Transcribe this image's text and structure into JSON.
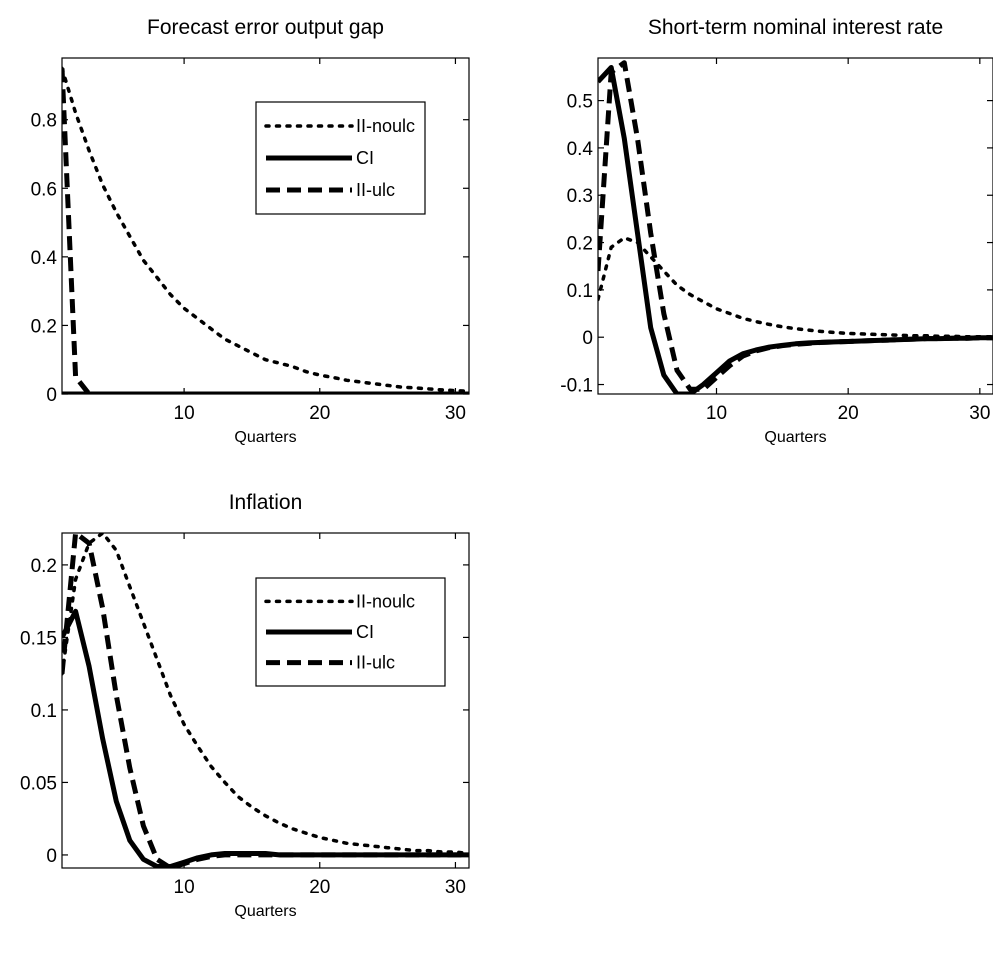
{
  "chart_data": [
    {
      "type": "line",
      "title": "Forecast error output gap",
      "xlabel": "Quarters",
      "ylabel": "",
      "xlim": [
        1,
        31
      ],
      "ylim": [
        0,
        0.98
      ],
      "xticks": [
        10,
        20,
        30
      ],
      "yticks": [
        0,
        0.2,
        0.4,
        0.6,
        0.8
      ],
      "x_tick_labels": [
        "10",
        "20",
        "30"
      ],
      "y_tick_labels": [
        "0",
        "0.2",
        "0.4",
        "0.6",
        "0.8"
      ],
      "grid": false,
      "legend": {
        "placement": "top-right",
        "entries": [
          "II-noulc",
          "CI",
          "II-ulc"
        ]
      },
      "x": [
        1,
        2,
        3,
        4,
        5,
        6,
        7,
        8,
        9,
        10,
        11,
        12,
        13,
        14,
        15,
        16,
        17,
        18,
        19,
        20,
        21,
        22,
        23,
        24,
        25,
        26,
        27,
        28,
        29,
        30,
        31
      ],
      "series": [
        {
          "name": "II-noulc",
          "style": "dotted",
          "values": [
            0.95,
            0.82,
            0.71,
            0.61,
            0.53,
            0.46,
            0.39,
            0.34,
            0.29,
            0.25,
            0.22,
            0.19,
            0.16,
            0.14,
            0.12,
            0.1,
            0.09,
            0.08,
            0.065,
            0.055,
            0.048,
            0.04,
            0.035,
            0.03,
            0.025,
            0.02,
            0.018,
            0.015,
            0.012,
            0.01,
            0.008
          ]
        },
        {
          "name": "CI",
          "style": "solid",
          "values": [
            0,
            0,
            0,
            0,
            0,
            0,
            0,
            0,
            0,
            0,
            0,
            0,
            0,
            0,
            0,
            0,
            0,
            0,
            0,
            0,
            0,
            0,
            0,
            0,
            0,
            0,
            0,
            0,
            0,
            0,
            0
          ]
        },
        {
          "name": "II-ulc",
          "style": "dashed",
          "values": [
            0.95,
            0.05,
            0,
            0,
            0,
            0,
            0,
            0,
            0,
            0,
            0,
            0,
            0,
            0,
            0,
            0,
            0,
            0,
            0,
            0,
            0,
            0,
            0,
            0,
            0,
            0,
            0,
            0,
            0,
            0,
            0
          ]
        }
      ]
    },
    {
      "type": "line",
      "title": "Short-term nominal interest rate",
      "xlabel": "Quarters",
      "ylabel": "",
      "xlim": [
        1,
        31
      ],
      "ylim": [
        -0.12,
        0.59
      ],
      "xticks": [
        10,
        20,
        30
      ],
      "yticks": [
        -0.1,
        0,
        0.1,
        0.2,
        0.3,
        0.4,
        0.5
      ],
      "x_tick_labels": [
        "10",
        "20",
        "30"
      ],
      "y_tick_labels": [
        "-0.1",
        "0",
        "0.1",
        "0.2",
        "0.3",
        "0.4",
        "0.5"
      ],
      "grid": false,
      "legend": null,
      "x": [
        1,
        2,
        3,
        4,
        5,
        6,
        7,
        8,
        9,
        10,
        11,
        12,
        13,
        14,
        15,
        16,
        17,
        18,
        19,
        20,
        21,
        22,
        23,
        24,
        25,
        26,
        27,
        28,
        29,
        30,
        31
      ],
      "series": [
        {
          "name": "II-noulc",
          "style": "dotted",
          "values": [
            0.08,
            0.19,
            0.21,
            0.2,
            0.17,
            0.14,
            0.11,
            0.09,
            0.075,
            0.06,
            0.05,
            0.04,
            0.033,
            0.027,
            0.022,
            0.018,
            0.015,
            0.012,
            0.01,
            0.008,
            0.007,
            0.006,
            0.005,
            0.004,
            0.003,
            0.003,
            0.002,
            0.002,
            0.001,
            0.001,
            0.001
          ]
        },
        {
          "name": "CI",
          "style": "solid",
          "values": [
            0.54,
            0.57,
            0.42,
            0.22,
            0.02,
            -0.08,
            -0.12,
            -0.12,
            -0.1,
            -0.075,
            -0.05,
            -0.035,
            -0.027,
            -0.021,
            -0.017,
            -0.014,
            -0.012,
            -0.011,
            -0.01,
            -0.009,
            -0.008,
            -0.007,
            -0.006,
            -0.005,
            -0.004,
            -0.003,
            -0.003,
            -0.002,
            -0.002,
            -0.001,
            -0.001
          ]
        },
        {
          "name": "II-ulc",
          "style": "dashed",
          "values": [
            0.14,
            0.56,
            0.58,
            0.42,
            0.22,
            0.05,
            -0.07,
            -0.11,
            -0.11,
            -0.085,
            -0.06,
            -0.04,
            -0.029,
            -0.022,
            -0.018,
            -0.015,
            -0.013,
            -0.011,
            -0.01,
            -0.009,
            -0.008,
            -0.007,
            -0.006,
            -0.005,
            -0.004,
            -0.003,
            -0.003,
            -0.002,
            -0.002,
            -0.001,
            -0.001
          ]
        }
      ]
    },
    {
      "type": "line",
      "title": "Inflation",
      "xlabel": "Quarters",
      "ylabel": "",
      "xlim": [
        1,
        31
      ],
      "ylim": [
        -0.009,
        0.222
      ],
      "xticks": [
        10,
        20,
        30
      ],
      "yticks": [
        0,
        0.05,
        0.1,
        0.15,
        0.2
      ],
      "x_tick_labels": [
        "10",
        "20",
        "30"
      ],
      "y_tick_labels": [
        "0",
        "0.05",
        "0.1",
        "0.15",
        "0.2"
      ],
      "grid": false,
      "legend": {
        "placement": "top-right",
        "entries": [
          "II-noulc",
          "CI",
          "II-ulc"
        ]
      },
      "x": [
        1,
        2,
        3,
        4,
        5,
        6,
        7,
        8,
        9,
        10,
        11,
        12,
        13,
        14,
        15,
        16,
        17,
        18,
        19,
        20,
        21,
        22,
        23,
        24,
        25,
        26,
        27,
        28,
        29,
        30,
        31
      ],
      "series": [
        {
          "name": "II-noulc",
          "style": "dotted",
          "values": [
            0.125,
            0.19,
            0.215,
            0.222,
            0.21,
            0.185,
            0.16,
            0.135,
            0.11,
            0.09,
            0.075,
            0.061,
            0.05,
            0.04,
            0.033,
            0.027,
            0.022,
            0.018,
            0.015,
            0.012,
            0.01,
            0.008,
            0.007,
            0.006,
            0.005,
            0.004,
            0.003,
            0.003,
            0.002,
            0.002,
            0.001
          ]
        },
        {
          "name": "CI",
          "style": "solid",
          "values": [
            0.15,
            0.168,
            0.13,
            0.08,
            0.037,
            0.01,
            -0.003,
            -0.008,
            -0.008,
            -0.005,
            -0.002,
            0.0,
            0.001,
            0.001,
            0.001,
            0.001,
            0.0,
            0.0,
            0.0,
            0.0,
            0.0,
            0.0,
            0.0,
            0.0,
            0.0,
            0.0,
            0.0,
            0.0,
            0.0,
            0.0,
            0.0
          ]
        },
        {
          "name": "II-ulc",
          "style": "dashed",
          "values": [
            0.125,
            0.222,
            0.215,
            0.17,
            0.11,
            0.06,
            0.02,
            -0.003,
            -0.009,
            -0.006,
            -0.003,
            -0.001,
            0.0,
            0.0,
            0.0,
            0.0,
            0.0,
            0.0,
            0.0,
            0.0,
            0.0,
            0.0,
            0.0,
            0.0,
            0.0,
            0.0,
            0.0,
            0.0,
            0.0,
            0.0,
            0.0
          ]
        }
      ]
    }
  ]
}
